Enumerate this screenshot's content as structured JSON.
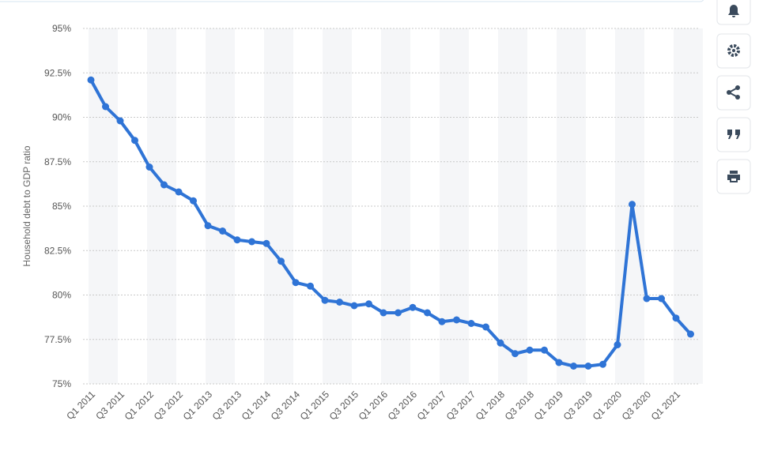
{
  "chart_data": {
    "type": "line",
    "y_label": "Household debt to GDP ratio",
    "categories": [
      "Q1 2011",
      null,
      "Q3 2011",
      null,
      "Q1 2012",
      null,
      "Q3 2012",
      null,
      "Q1 2013",
      null,
      "Q3 2013",
      null,
      "Q1 2014",
      null,
      "Q3 2014",
      null,
      "Q1 2015",
      null,
      "Q3 2015",
      null,
      "Q1 2016",
      null,
      "Q3 2016",
      null,
      "Q1 2017",
      null,
      "Q3 2017",
      null,
      "Q1 2018",
      null,
      "Q3 2018",
      null,
      "Q1 2019",
      null,
      "Q3 2019",
      null,
      "Q1 2020",
      null,
      "Q3 2020",
      null,
      "Q1 2021",
      null
    ],
    "series": [
      {
        "color": "#2f74d6",
        "values": [
          92.1,
          90.6,
          89.8,
          88.7,
          87.2,
          86.2,
          85.8,
          85.3,
          83.9,
          83.6,
          83.1,
          83.0,
          82.9,
          81.9,
          80.7,
          80.5,
          79.7,
          79.6,
          79.4,
          79.5,
          79.0,
          79.0,
          79.3,
          79.0,
          78.5,
          78.6,
          78.4,
          78.2,
          77.3,
          76.7,
          76.9,
          76.9,
          76.2,
          76.0,
          76.0,
          76.1,
          77.2,
          85.1,
          79.8,
          79.8,
          78.7,
          77.8
        ]
      }
    ],
    "ylim": [
      75,
      95
    ],
    "yticks": [
      {
        "value": 75,
        "label": "75%"
      },
      {
        "value": 77.5,
        "label": "77.5%"
      },
      {
        "value": 80,
        "label": "80%"
      },
      {
        "value": 82.5,
        "label": "82.5%"
      },
      {
        "value": 85,
        "label": "85%"
      },
      {
        "value": 87.5,
        "label": "87.5%"
      },
      {
        "value": 90,
        "label": "90%"
      },
      {
        "value": 92.5,
        "label": "92.5%"
      },
      {
        "value": 95,
        "label": "95%"
      }
    ],
    "grid": true
  }
}
